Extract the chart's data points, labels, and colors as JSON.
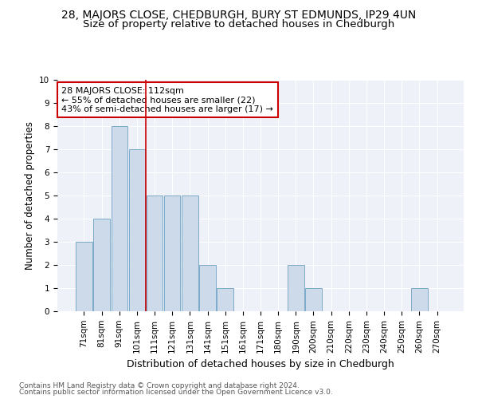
{
  "title1": "28, MAJORS CLOSE, CHEDBURGH, BURY ST EDMUNDS, IP29 4UN",
  "title2": "Size of property relative to detached houses in Chedburgh",
  "xlabel": "Distribution of detached houses by size in Chedburgh",
  "ylabel": "Number of detached properties",
  "categories": [
    "71sqm",
    "81sqm",
    "91sqm",
    "101sqm",
    "111sqm",
    "121sqm",
    "131sqm",
    "141sqm",
    "151sqm",
    "161sqm",
    "171sqm",
    "180sqm",
    "190sqm",
    "200sqm",
    "210sqm",
    "220sqm",
    "230sqm",
    "240sqm",
    "250sqm",
    "260sqm",
    "270sqm"
  ],
  "values": [
    3,
    4,
    8,
    7,
    5,
    5,
    5,
    2,
    1,
    0,
    0,
    0,
    2,
    1,
    0,
    0,
    0,
    0,
    0,
    1,
    0
  ],
  "bar_color": "#ccdaea",
  "bar_edge_color": "#7aaac8",
  "vline_color": "#cc0000",
  "vline_position": 3.5,
  "annotation_text": "28 MAJORS CLOSE: 112sqm\n← 55% of detached houses are smaller (22)\n43% of semi-detached houses are larger (17) →",
  "annotation_box_color": "#ffffff",
  "annotation_box_edge": "#cc0000",
  "ylim": [
    0,
    10
  ],
  "yticks": [
    0,
    1,
    2,
    3,
    4,
    5,
    6,
    7,
    8,
    9,
    10
  ],
  "footer1": "Contains HM Land Registry data © Crown copyright and database right 2024.",
  "footer2": "Contains public sector information licensed under the Open Government Licence v3.0.",
  "title1_fontsize": 10,
  "title2_fontsize": 9.5,
  "xlabel_fontsize": 9,
  "ylabel_fontsize": 8.5,
  "tick_fontsize": 7.5,
  "annotation_fontsize": 8,
  "footer_fontsize": 6.5,
  "bg_color": "#eef2f8"
}
